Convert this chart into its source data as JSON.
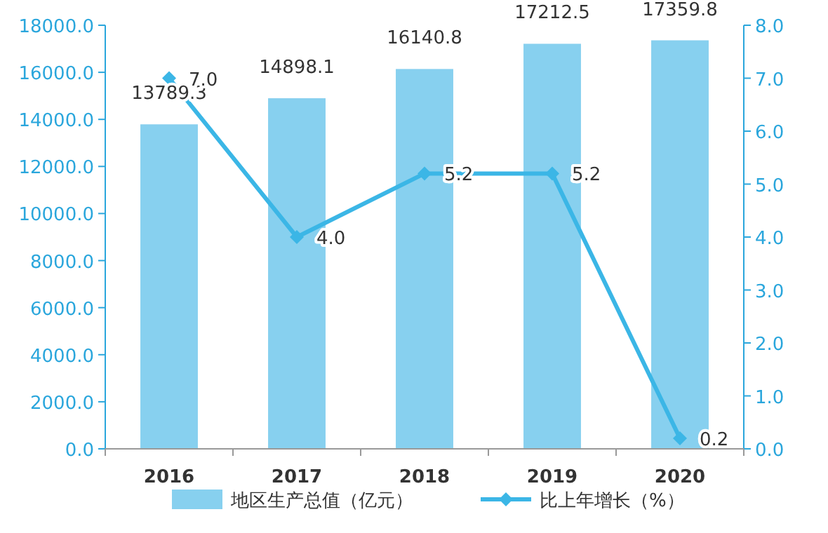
{
  "chart_data": {
    "type": "bar",
    "categories": [
      "2016",
      "2017",
      "2018",
      "2019",
      "2020"
    ],
    "series": [
      {
        "name": "地区生产总值（亿元）",
        "color": "#87d0ef",
        "values": [
          13789.3,
          14898.1,
          16140.8,
          17212.5,
          17359.8
        ],
        "value_labels": [
          "13789.3",
          "14898.1",
          "16140.8",
          "17212.5",
          "17359.8"
        ]
      },
      {
        "name": "比上年增长（%）",
        "type": "line",
        "axis": "y2",
        "color": "#3bb6e6",
        "marker": "diamond",
        "values": [
          7.0,
          4.0,
          5.2,
          5.2,
          0.2
        ],
        "value_labels": [
          "7.0",
          "4.0",
          "5.2",
          "5.2",
          "0.2"
        ]
      }
    ],
    "ylim": [
      0,
      18000
    ],
    "yticks": [
      {
        "value": 0,
        "label": "0.0"
      },
      {
        "value": 2000,
        "label": "2000.0"
      },
      {
        "value": 4000,
        "label": "4000.0"
      },
      {
        "value": 6000,
        "label": "6000.0"
      },
      {
        "value": 8000,
        "label": "8000.0"
      },
      {
        "value": 10000,
        "label": "10000.0"
      },
      {
        "value": 12000,
        "label": "12000.0"
      },
      {
        "value": 14000,
        "label": "14000.0"
      },
      {
        "value": 16000,
        "label": "16000.0"
      },
      {
        "value": 18000,
        "label": "18000.0"
      }
    ],
    "y2lim": [
      0,
      8
    ],
    "y2ticks": [
      {
        "value": 0,
        "label": "0.0"
      },
      {
        "value": 1,
        "label": "1.0"
      },
      {
        "value": 2,
        "label": "2.0"
      },
      {
        "value": 3,
        "label": "3.0"
      },
      {
        "value": 4,
        "label": "4.0"
      },
      {
        "value": 5,
        "label": "5.0"
      },
      {
        "value": 6,
        "label": "6.0"
      },
      {
        "value": 7,
        "label": "7.0"
      },
      {
        "value": 8,
        "label": "8.0"
      }
    ],
    "legend": "bottom",
    "grid": false
  }
}
